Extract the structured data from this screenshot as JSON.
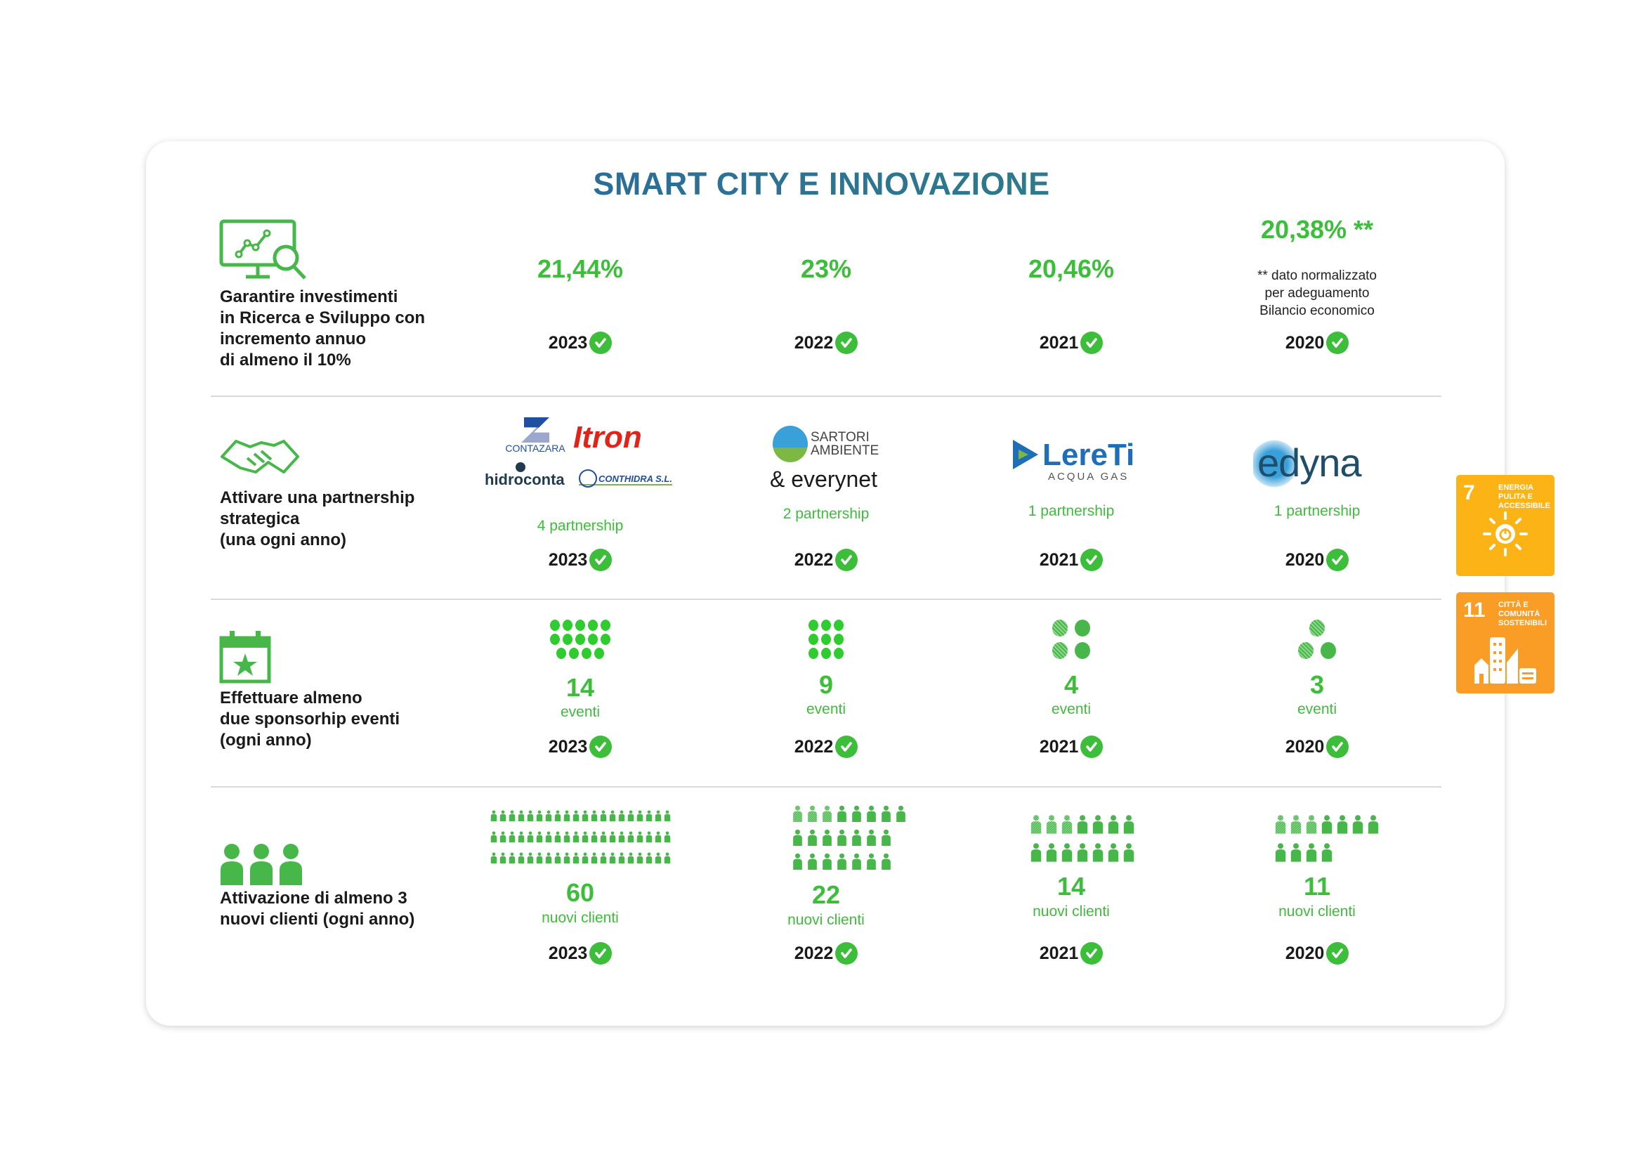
{
  "title": "SMART CITY E INNOVAZIONE",
  "colors": {
    "accent_green": "#3DBE3A",
    "title_blue": "#2B5DA8",
    "sdg7": "#FCB316",
    "sdg11": "#F99D26"
  },
  "rows": [
    {
      "icon": "monitor-chart-magnifier-icon",
      "goal": [
        "Garantire investimenti",
        "in Ricerca e Sviluppo con",
        "incremento annuo",
        "di almeno il 10%"
      ],
      "cells": [
        {
          "value": "21,44%",
          "year": "2023"
        },
        {
          "value": "23%",
          "year": "2022"
        },
        {
          "value": "20,46%",
          "year": "2021"
        },
        {
          "value": "20,38% **",
          "note": [
            "** dato normalizzato",
            "per adeguamento",
            "Bilancio economico"
          ],
          "year": "2020"
        }
      ]
    },
    {
      "icon": "handshake-icon",
      "goal": [
        "Attivare una partnership",
        "strategica",
        "(una ogni anno)"
      ],
      "cells": [
        {
          "partners": [
            "CONTAZARA",
            "Itron",
            "hidroconta",
            "CONTHIDRA S.L."
          ],
          "label": "4 partnership",
          "year": "2023"
        },
        {
          "partners": [
            "SARTORI AMBIENTE",
            "everynet"
          ],
          "label": "2 partnership",
          "year": "2022"
        },
        {
          "partners": [
            "LereTi ACQUA GAS"
          ],
          "label": "1 partnership",
          "year": "2021"
        },
        {
          "partners": [
            "edyna"
          ],
          "label": "1 partnership",
          "year": "2020"
        }
      ]
    },
    {
      "icon": "calendar-star-icon",
      "goal": [
        "Effettuare almeno",
        "due sponsorhip eventi",
        "(ogni anno)"
      ],
      "cells": [
        {
          "count": 14,
          "value": "14",
          "label": "eventi",
          "year": "2023"
        },
        {
          "count": 9,
          "value": "9",
          "label": "eventi",
          "year": "2022"
        },
        {
          "count": 4,
          "value": "4",
          "label": "eventi",
          "year": "2021"
        },
        {
          "count": 3,
          "value": "3",
          "label": "eventi",
          "year": "2020"
        }
      ]
    },
    {
      "icon": "people-group-icon",
      "goal": [
        "Attivazione di almeno 3",
        "nuovi clienti (ogni anno)"
      ],
      "cells": [
        {
          "count": 60,
          "value": "60",
          "label": "nuovi clienti",
          "year": "2023"
        },
        {
          "count": 22,
          "value": "22",
          "label": "nuovi clienti",
          "year": "2022"
        },
        {
          "count": 14,
          "value": "14",
          "label": "nuovi clienti",
          "year": "2021"
        },
        {
          "count": 11,
          "value": "11",
          "label": "nuovi clienti",
          "year": "2020"
        }
      ]
    }
  ],
  "sdg": [
    {
      "number": "7",
      "label": "ENERGIA PULITA E ACCESSIBILE",
      "icon": "sun-power-icon"
    },
    {
      "number": "11",
      "label": "CITTÀ E COMUNITÀ SOSTENIBILI",
      "icon": "city-buildings-icon"
    }
  ]
}
